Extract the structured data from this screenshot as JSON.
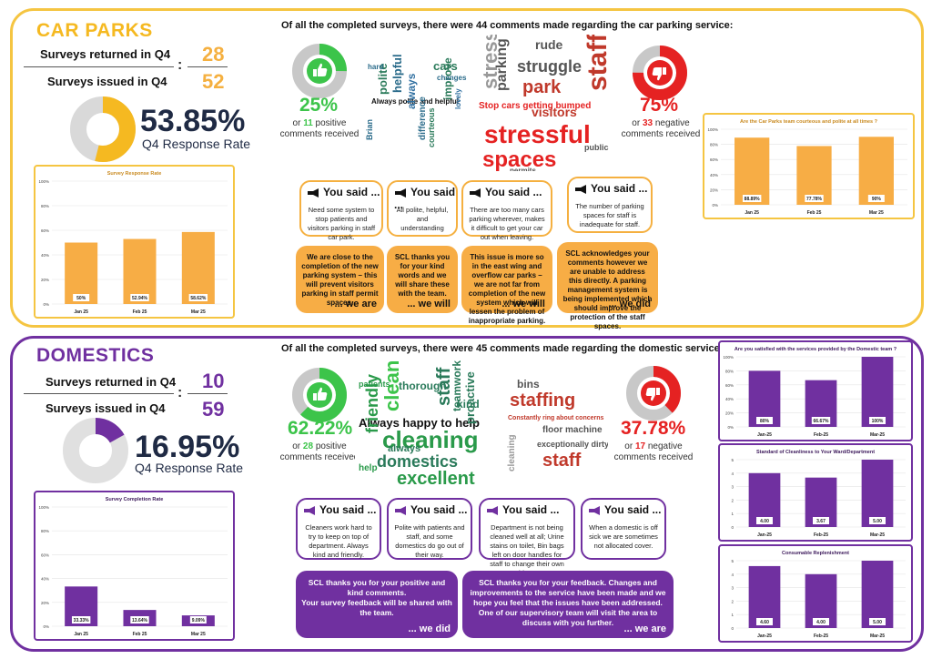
{
  "colors": {
    "carparks_accent": "#f5c542",
    "carparks_bar": "#f7ad45",
    "domestics_accent": "#7030a0",
    "positive": "#3cc44a",
    "negative": "#e52222"
  },
  "car_parks": {
    "title": "CAR PARKS",
    "returned_label": "Surveys returned in Q4",
    "returned_value": "28",
    "issued_label": "Surveys issued in Q4",
    "issued_value": "52",
    "colon": ":",
    "rate_value": "53.85%",
    "rate_fraction": 0.5385,
    "rate_label": "Q4 Response Rate",
    "intro": "Of all the completed surveys, there were 44 comments made regarding the car parking service:",
    "positive_pct": "25%",
    "positive_fraction": 0.25,
    "positive_text_pre": "or ",
    "positive_count": "11",
    "positive_text_post": " positive",
    "positive_text2": "comments received",
    "negative_pct": "75%",
    "negative_fraction": 0.75,
    "negative_text_pre": "or ",
    "negative_count": "33",
    "negative_text_post": " negative",
    "negative_text2": "comments received",
    "cloud_pos": [
      "Always polite and helpful",
      "polite",
      "helpful",
      "always",
      "cars",
      "improve",
      "changes",
      "difference",
      "Brian",
      "courteous",
      "lovely",
      "hard"
    ],
    "cloud_neg": [
      "Stop cars getting bumped",
      "stressful",
      "spaces",
      "park",
      "staff",
      "struggle",
      "visitors",
      "parking",
      "rude",
      "stress",
      "permits",
      "public"
    ],
    "you_said_label": "You said ...",
    "you_said": [
      "Need some system to stop patients and visitors parking in staff car park.",
      "All polite, helpful, and understanding",
      "There are too many cars parking wherever, makes it difficult to get your car out when leaving.",
      "The number of parking spaces for staff is inadequate for staff."
    ],
    "replies": [
      {
        "text": "We are close to the completion of the new parking system – this will prevent visitors parking in staff permit spaces.",
        "sig": "... we are"
      },
      {
        "text": "SCL thanks you for your kind words and we will share these with the team.",
        "sig": "... we will"
      },
      {
        "text": "This issue is more so in the east wing and overflow car parks – we are not far from completion of the new system which will lessen the problem of inappropriate parking.",
        "sig": "... we will"
      },
      {
        "text": "SCL acknowledges your comments however we are unable to address this directly. A parking management system is being implemented which should improve the protection of the staff spaces.",
        "sig": "... we did"
      }
    ]
  },
  "domestics": {
    "title": "DOMESTICS",
    "returned_label": "Surveys returned  in Q4",
    "returned_value": "10",
    "issued_label": "Surveys issued in Q4",
    "issued_value": "59",
    "colon": ":",
    "rate_value": "16.95%",
    "rate_fraction": 0.1695,
    "rate_label": "Q4 Response Rate",
    "intro": "Of all the completed surveys, there were 45 comments made regarding the domestic service:",
    "positive_pct": "62.22%",
    "positive_fraction": 0.6222,
    "positive_text_pre": "or ",
    "positive_count": "28",
    "positive_text_post": " positive",
    "positive_text2": "comments received",
    "negative_pct": "37.78%",
    "negative_fraction": 0.3778,
    "negative_text_pre": "or ",
    "negative_count": "17",
    "negative_text_post": " negative",
    "negative_text2": "comments received",
    "cloud_pos": [
      "Always happy to help",
      "cleaning",
      "domestics",
      "excellent",
      "friendly",
      "clean",
      "staff",
      "always",
      "thorough",
      "teamwork",
      "proactive",
      "kind",
      "help",
      "patients"
    ],
    "cloud_neg": [
      "staffing",
      "staff",
      "Constantly ring about concerns",
      "floor machine",
      "bins",
      "exceptionally dirty",
      "cleaning"
    ],
    "you_said_label": "You said ...",
    "you_said": [
      "Cleaners work hard to try to keep on top of department. Always kind and friendly.",
      "Polite with patients and staff, and some domestics do go out of their way.",
      "Department is not being cleaned well at all;  Urine stains on toilet, Bin bags left on door handles for staff to change their own bins!!",
      "When a domestic is off sick we are sometimes not allocated cover."
    ],
    "replies": [
      {
        "text": "SCL thanks you for your positive and kind comments.\nYour survey feedback will be shared with the team.",
        "sig": "... we did"
      },
      {
        "text": "SCL thanks you for your feedback.  Changes and improvements to the service have been made and we hope you feel that the issues have been addressed.  One of our supervisory team will visit the area to discuss with you further.",
        "sig": "... we are"
      }
    ]
  },
  "chart_data": [
    {
      "type": "bar",
      "title": "Survey Response Rate",
      "categories": [
        "Jan 25",
        "Feb 25",
        "Mar 25"
      ],
      "values": [
        50,
        52.94,
        58.62
      ],
      "labels": [
        "50%",
        "52.94%",
        "58.62%"
      ],
      "ylim": [
        0,
        100
      ],
      "ticks": [
        "0%",
        "20%",
        "40%",
        "60%",
        "80%",
        "100%"
      ],
      "color": "#f7ad45",
      "border": "#f5c542"
    },
    {
      "type": "bar",
      "title": "Are the Car Parks team courteous and polite at all times ?",
      "categories": [
        "Jan 25",
        "Feb 25",
        "Mar 25"
      ],
      "values": [
        88.89,
        77.78,
        90
      ],
      "labels": [
        "88.89%",
        "77.78%",
        "90%"
      ],
      "ylim": [
        0,
        100
      ],
      "ticks": [
        "0%",
        "20%",
        "40%",
        "60%",
        "80%",
        "100%"
      ],
      "color": "#f7ad45",
      "border": "#f5c542"
    },
    {
      "type": "bar",
      "title": "Survey Completion Rate",
      "categories": [
        "Jan 25",
        "Feb 25",
        "Mar 25"
      ],
      "values": [
        33.33,
        13.64,
        9.09
      ],
      "labels": [
        "33.33%",
        "13.64%",
        "9.09%"
      ],
      "ylim": [
        0,
        100
      ],
      "ticks": [
        "0%",
        "20%",
        "40%",
        "60%",
        "80%",
        "100%"
      ],
      "color": "#7030a0",
      "border": "#7030a0"
    },
    {
      "type": "bar",
      "title": "Are you satisfied with the services provided by the Domestic team ?",
      "categories": [
        "Jan-25",
        "Feb-25",
        "Mar-25"
      ],
      "values": [
        80,
        66.67,
        100
      ],
      "labels": [
        "80%",
        "66.67%",
        "100%"
      ],
      "ylim": [
        0,
        100
      ],
      "ticks": [
        "0%",
        "20%",
        "40%",
        "60%",
        "80%",
        "100%"
      ],
      "color": "#7030a0",
      "border": "#7030a0"
    },
    {
      "type": "bar",
      "title": "Standard of Cleanliness to Your Ward/Department",
      "categories": [
        "Jan-25",
        "Feb-25",
        "Mar-25"
      ],
      "values": [
        4.0,
        3.67,
        5.0
      ],
      "labels": [
        "4.00",
        "3.67",
        "5.00"
      ],
      "ylim": [
        0,
        5
      ],
      "ticks": [
        "0",
        "1",
        "2",
        "3",
        "4",
        "5"
      ],
      "color": "#7030a0",
      "border": "#7030a0"
    },
    {
      "type": "bar",
      "title": "Consumable Replenishment",
      "categories": [
        "Jan-25",
        "Feb-25",
        "Mar-25"
      ],
      "values": [
        4.6,
        4.0,
        5.0
      ],
      "labels": [
        "4.60",
        "4.00",
        "5.00"
      ],
      "ylim": [
        0,
        5
      ],
      "ticks": [
        "0",
        "1",
        "2",
        "3",
        "4",
        "5"
      ],
      "color": "#7030a0",
      "border": "#7030a0"
    }
  ]
}
